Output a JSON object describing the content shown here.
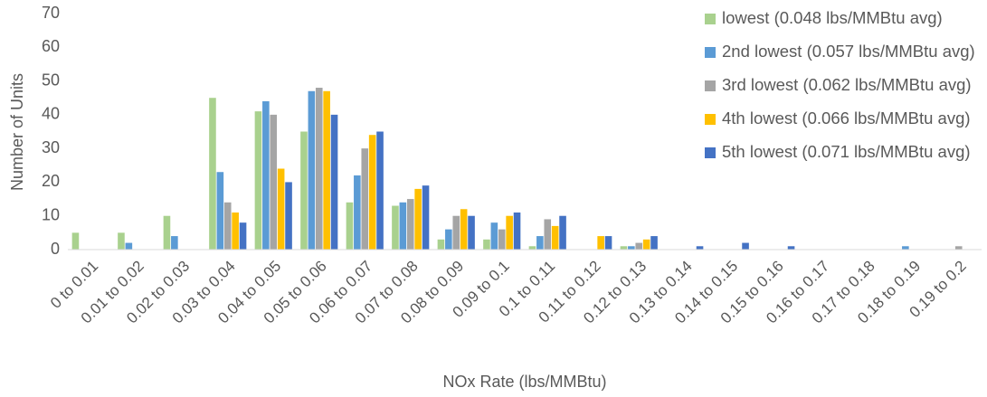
{
  "chart_data": {
    "type": "bar",
    "x_label": "NOx Rate (lbs/MMBtu)",
    "y_label": "Number of Units",
    "categories": [
      "0 to 0.01",
      "0.01 to 0.02",
      "0.02 to 0.03",
      "0.03 to 0.04",
      "0.04 to 0.05",
      "0.05 to 0.06",
      "0.06 to 0.07",
      "0.07 to 0.08",
      "0.08 to 0.09",
      "0.09 to 0.1",
      "0.1 to 0.11",
      "0.11 to 0.12",
      "0.12 to 0.13",
      "0.13 to 0.14",
      "0.14 to 0.15",
      "0.15 to 0.16",
      "0.16 to 0.17",
      "0.17 to 0.18",
      "0.18 to 0.19",
      "0.19 to 0.2"
    ],
    "series": [
      {
        "name": "lowest (0.048 lbs/MMBtu avg)",
        "color": "#a9d18e",
        "values": [
          5,
          5,
          10,
          45,
          41,
          35,
          14,
          13,
          3,
          3,
          1,
          0,
          1,
          0,
          0,
          0,
          0,
          0,
          0,
          0
        ]
      },
      {
        "name": "2nd lowest (0.057 lbs/MMBtu avg)",
        "color": "#5b9bd5",
        "values": [
          0,
          2,
          4,
          23,
          44,
          47,
          22,
          14,
          6,
          8,
          4,
          0,
          1,
          0,
          0,
          0,
          0,
          0,
          1,
          0
        ]
      },
      {
        "name": "3rd lowest (0.062 lbs/MMBtu avg)",
        "color": "#a5a5a5",
        "values": [
          0,
          0,
          0,
          14,
          40,
          48,
          30,
          15,
          10,
          6,
          9,
          0,
          2,
          0,
          0,
          0,
          0,
          0,
          0,
          1
        ]
      },
      {
        "name": "4th lowest (0.066 lbs/MMBtu avg)",
        "color": "#ffc000",
        "values": [
          0,
          0,
          0,
          11,
          24,
          47,
          34,
          18,
          12,
          10,
          7,
          4,
          3,
          0,
          0,
          0,
          0,
          0,
          0,
          0
        ]
      },
      {
        "name": "5th lowest (0.071 lbs/MMBtu avg)",
        "color": "#4472c4",
        "values": [
          0,
          0,
          0,
          8,
          20,
          40,
          35,
          19,
          10,
          11,
          10,
          4,
          4,
          1,
          2,
          1,
          0,
          0,
          0,
          0
        ]
      }
    ],
    "ylim": [
      0,
      70
    ],
    "yticks": [
      0,
      10,
      20,
      30,
      40,
      50,
      60,
      70
    ],
    "legend": "top-right"
  }
}
